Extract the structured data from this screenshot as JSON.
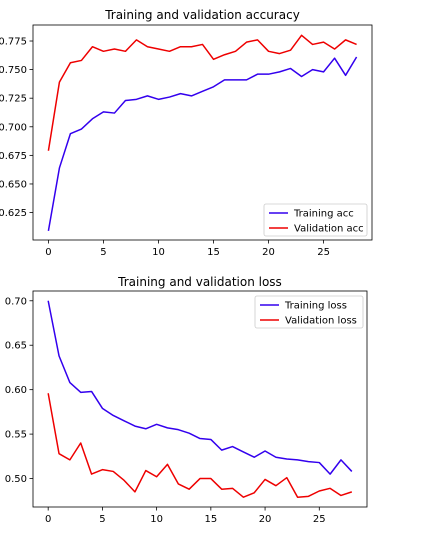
{
  "chart_data": [
    {
      "type": "line",
      "title": "Training and validation accuracy",
      "xlabel": "",
      "ylabel": "",
      "xlim": [
        -1.4,
        29.4
      ],
      "ylim": [
        0.601,
        0.789
      ],
      "x_ticks": [
        0,
        5,
        10,
        15,
        20,
        25
      ],
      "y_ticks": [
        0.625,
        0.65,
        0.675,
        0.7,
        0.725,
        0.75,
        0.775
      ],
      "y_tick_labels": [
        "0.625",
        "0.650",
        "0.675",
        "0.700",
        "0.725",
        "0.750",
        "0.775"
      ],
      "legend_position": "lower-right",
      "grid": false,
      "x": [
        0,
        1,
        2,
        3,
        4,
        5,
        6,
        7,
        8,
        9,
        10,
        11,
        12,
        13,
        14,
        15,
        16,
        17,
        18,
        19,
        20,
        21,
        22,
        23,
        24,
        25,
        26,
        27,
        28
      ],
      "series": [
        {
          "name": "Training acc",
          "color": "#3300ee",
          "values": [
            0.609,
            0.664,
            0.694,
            0.698,
            0.707,
            0.713,
            0.712,
            0.723,
            0.724,
            0.727,
            0.724,
            0.726,
            0.729,
            0.727,
            0.731,
            0.735,
            0.741,
            0.741,
            0.741,
            0.746,
            0.746,
            0.748,
            0.751,
            0.744,
            0.75,
            0.748,
            0.76,
            0.745,
            0.761
          ]
        },
        {
          "name": "Validation acc",
          "color": "#ee0000",
          "values": [
            0.679,
            0.739,
            0.756,
            0.758,
            0.77,
            0.766,
            0.768,
            0.766,
            0.776,
            0.77,
            0.768,
            0.766,
            0.77,
            0.77,
            0.772,
            0.759,
            0.763,
            0.766,
            0.774,
            0.776,
            0.766,
            0.764,
            0.767,
            0.78,
            0.772,
            0.774,
            0.768,
            0.776,
            0.772
          ]
        }
      ]
    },
    {
      "type": "line",
      "title": "Training and validation loss",
      "xlabel": "",
      "ylabel": "",
      "xlim": [
        -1.4,
        29.4
      ],
      "ylim": [
        0.468,
        0.711
      ],
      "x_ticks": [
        0,
        5,
        10,
        15,
        20,
        25
      ],
      "y_ticks": [
        0.5,
        0.55,
        0.6,
        0.65,
        0.7
      ],
      "y_tick_labels": [
        "0.50",
        "0.55",
        "0.60",
        "0.65",
        "0.70"
      ],
      "legend_position": "upper-right",
      "grid": false,
      "x": [
        0,
        1,
        2,
        3,
        4,
        5,
        6,
        7,
        8,
        9,
        10,
        11,
        12,
        13,
        14,
        15,
        16,
        17,
        18,
        19,
        20,
        21,
        22,
        23,
        24,
        25,
        26,
        27,
        28
      ],
      "series": [
        {
          "name": "Training loss",
          "color": "#3300ee",
          "values": [
            0.7,
            0.638,
            0.608,
            0.597,
            0.598,
            0.579,
            0.571,
            0.565,
            0.559,
            0.556,
            0.561,
            0.557,
            0.555,
            0.551,
            0.545,
            0.544,
            0.532,
            0.536,
            0.53,
            0.524,
            0.531,
            0.524,
            0.522,
            0.521,
            0.519,
            0.518,
            0.505,
            0.521,
            0.508
          ]
        },
        {
          "name": "Validation loss",
          "color": "#ee0000",
          "values": [
            0.596,
            0.528,
            0.521,
            0.54,
            0.505,
            0.51,
            0.508,
            0.498,
            0.485,
            0.509,
            0.502,
            0.516,
            0.494,
            0.488,
            0.5,
            0.5,
            0.488,
            0.489,
            0.479,
            0.484,
            0.499,
            0.492,
            0.501,
            0.479,
            0.48,
            0.486,
            0.489,
            0.481,
            0.485
          ]
        }
      ]
    }
  ]
}
